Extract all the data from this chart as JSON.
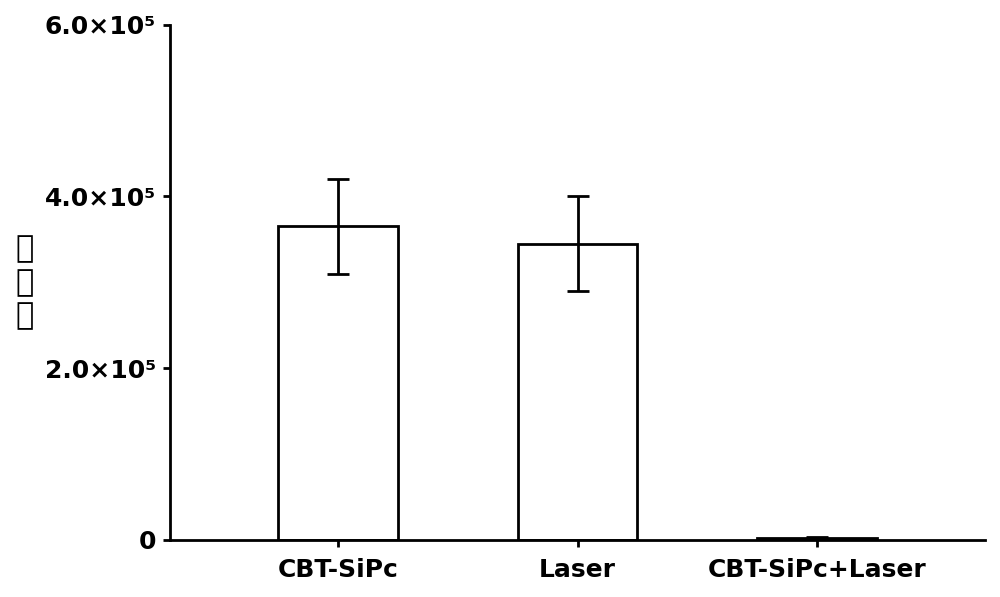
{
  "categories": [
    "CBT-SiPc",
    "Laser",
    "CBT-SiPc+Laser"
  ],
  "values": [
    365000,
    345000,
    2000
  ],
  "errors": [
    55000,
    55000,
    1500
  ],
  "bar_color": "#ffffff",
  "bar_edgecolor": "#000000",
  "bar_linewidth": 2.0,
  "errorbar_color": "#000000",
  "errorbar_linewidth": 2.0,
  "errorbar_capsize": 8,
  "errorbar_capthick": 2.0,
  "ylabel": "细菌数",
  "ylabel_fontsize": 22,
  "tick_fontsize": 18,
  "xtick_fontsize": 18,
  "ylim": [
    0,
    600000
  ],
  "yticks": [
    0,
    200000,
    400000,
    600000
  ],
  "ytick_labels": [
    "0",
    "2.0×10⁵",
    "4.0×10⁵",
    "6.0×10⁵"
  ],
  "bar_width": 0.5,
  "background_color": "#ffffff",
  "spine_linewidth": 2.0,
  "figsize": [
    10.0,
    5.97
  ]
}
